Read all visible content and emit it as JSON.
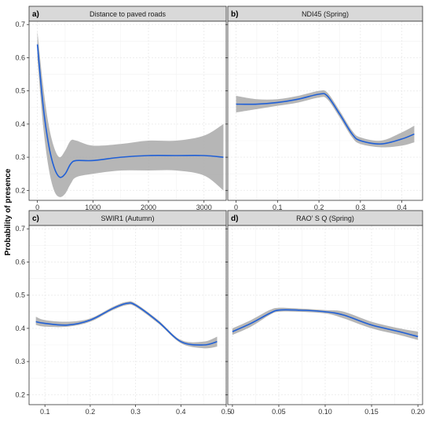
{
  "y_axis_title": "Probability of presence",
  "colors": {
    "line": "#1f5fd6",
    "ribbon": "#a9a9a9",
    "strip": "#d9d9d9",
    "grid": "#ebebeb",
    "border": "#333333"
  },
  "chart_data": [
    {
      "type": "line",
      "tag": "a)",
      "title": "Distance to paved roads",
      "xlim": [
        -150,
        3400
      ],
      "ylim": [
        0.17,
        0.71
      ],
      "xticks": [
        0,
        1000,
        2000,
        3000
      ],
      "xtick_labels": [
        "0",
        "1000",
        "2000",
        "3000"
      ],
      "yticks": [
        0.2,
        0.3,
        0.4,
        0.5,
        0.6,
        0.7
      ],
      "ytick_labels": [
        "0.2",
        "0.3",
        "0.4",
        "0.5",
        "0.6",
        "0.7"
      ],
      "series": [
        {
          "x": [
            0,
            100,
            200,
            300,
            400,
            500,
            600,
            700,
            1000,
            1500,
            2000,
            2500,
            3000,
            3350
          ],
          "y": [
            0.64,
            0.46,
            0.34,
            0.27,
            0.24,
            0.25,
            0.28,
            0.29,
            0.29,
            0.3,
            0.305,
            0.305,
            0.305,
            0.3
          ],
          "lower": [
            0.6,
            0.4,
            0.27,
            0.2,
            0.18,
            0.19,
            0.22,
            0.24,
            0.25,
            0.26,
            0.26,
            0.26,
            0.245,
            0.2
          ],
          "upper": [
            0.68,
            0.52,
            0.4,
            0.33,
            0.3,
            0.32,
            0.35,
            0.35,
            0.335,
            0.34,
            0.35,
            0.35,
            0.365,
            0.4
          ]
        }
      ]
    },
    {
      "type": "line",
      "tag": "b)",
      "title": "NDI45 (Spring)",
      "xlim": [
        -0.02,
        0.45
      ],
      "ylim": [
        0.17,
        0.71
      ],
      "xticks": [
        0,
        0.1,
        0.2,
        0.3,
        0.4
      ],
      "xtick_labels": [
        "0",
        "0.1",
        "0.2",
        "0.3",
        "0.4"
      ],
      "yticks": [
        0.2,
        0.3,
        0.4,
        0.5,
        0.6,
        0.7
      ],
      "ytick_labels": [],
      "series": [
        {
          "x": [
            0,
            0.05,
            0.1,
            0.15,
            0.2,
            0.22,
            0.25,
            0.28,
            0.3,
            0.35,
            0.4,
            0.43
          ],
          "y": [
            0.46,
            0.46,
            0.465,
            0.475,
            0.49,
            0.485,
            0.43,
            0.37,
            0.35,
            0.34,
            0.355,
            0.37
          ],
          "lower": [
            0.435,
            0.445,
            0.455,
            0.465,
            0.48,
            0.475,
            0.42,
            0.36,
            0.34,
            0.33,
            0.335,
            0.345
          ],
          "upper": [
            0.485,
            0.475,
            0.475,
            0.485,
            0.5,
            0.495,
            0.44,
            0.38,
            0.36,
            0.35,
            0.375,
            0.395
          ]
        }
      ]
    },
    {
      "type": "line",
      "tag": "c)",
      "title": "SWIR1 (Autumn)",
      "xlim": [
        0.065,
        0.5
      ],
      "ylim": [
        0.17,
        0.71
      ],
      "xticks": [
        0.1,
        0.2,
        0.3,
        0.4,
        0.5
      ],
      "xtick_labels": [
        "0.1",
        "0.2",
        "0.3",
        "0.4",
        "0.5"
      ],
      "yticks": [
        0.2,
        0.3,
        0.4,
        0.5,
        0.6,
        0.7
      ],
      "ytick_labels": [
        "0.2",
        "0.3",
        "0.4",
        "0.5",
        "0.6",
        "0.7"
      ],
      "series": [
        {
          "x": [
            0.08,
            0.1,
            0.15,
            0.2,
            0.25,
            0.28,
            0.3,
            0.35,
            0.4,
            0.45,
            0.48
          ],
          "y": [
            0.42,
            0.415,
            0.41,
            0.425,
            0.46,
            0.475,
            0.47,
            0.42,
            0.36,
            0.35,
            0.36
          ],
          "lower": [
            0.41,
            0.405,
            0.405,
            0.42,
            0.455,
            0.47,
            0.465,
            0.415,
            0.355,
            0.34,
            0.345
          ],
          "upper": [
            0.435,
            0.425,
            0.42,
            0.43,
            0.465,
            0.48,
            0.475,
            0.425,
            0.365,
            0.36,
            0.375
          ]
        }
      ]
    },
    {
      "type": "line",
      "tag": "d)",
      "title": "RAO’ S Q (Spring)",
      "xlim": [
        -0.005,
        0.205
      ],
      "ylim": [
        0.17,
        0.71
      ],
      "xticks": [
        0,
        0.05,
        0.1,
        0.15,
        0.2
      ],
      "xtick_labels": [
        "0",
        "0.05",
        "0.10",
        "0.15",
        "0.20"
      ],
      "yticks": [
        0.2,
        0.3,
        0.4,
        0.5,
        0.6,
        0.7
      ],
      "ytick_labels": [],
      "series": [
        {
          "x": [
            0,
            0.02,
            0.04,
            0.05,
            0.07,
            0.1,
            0.12,
            0.15,
            0.18,
            0.2
          ],
          "y": [
            0.39,
            0.415,
            0.445,
            0.455,
            0.455,
            0.45,
            0.44,
            0.41,
            0.39,
            0.375
          ],
          "lower": [
            0.38,
            0.405,
            0.44,
            0.45,
            0.45,
            0.445,
            0.43,
            0.4,
            0.38,
            0.365
          ],
          "upper": [
            0.4,
            0.425,
            0.455,
            0.462,
            0.46,
            0.455,
            0.45,
            0.42,
            0.4,
            0.39
          ]
        }
      ]
    }
  ]
}
